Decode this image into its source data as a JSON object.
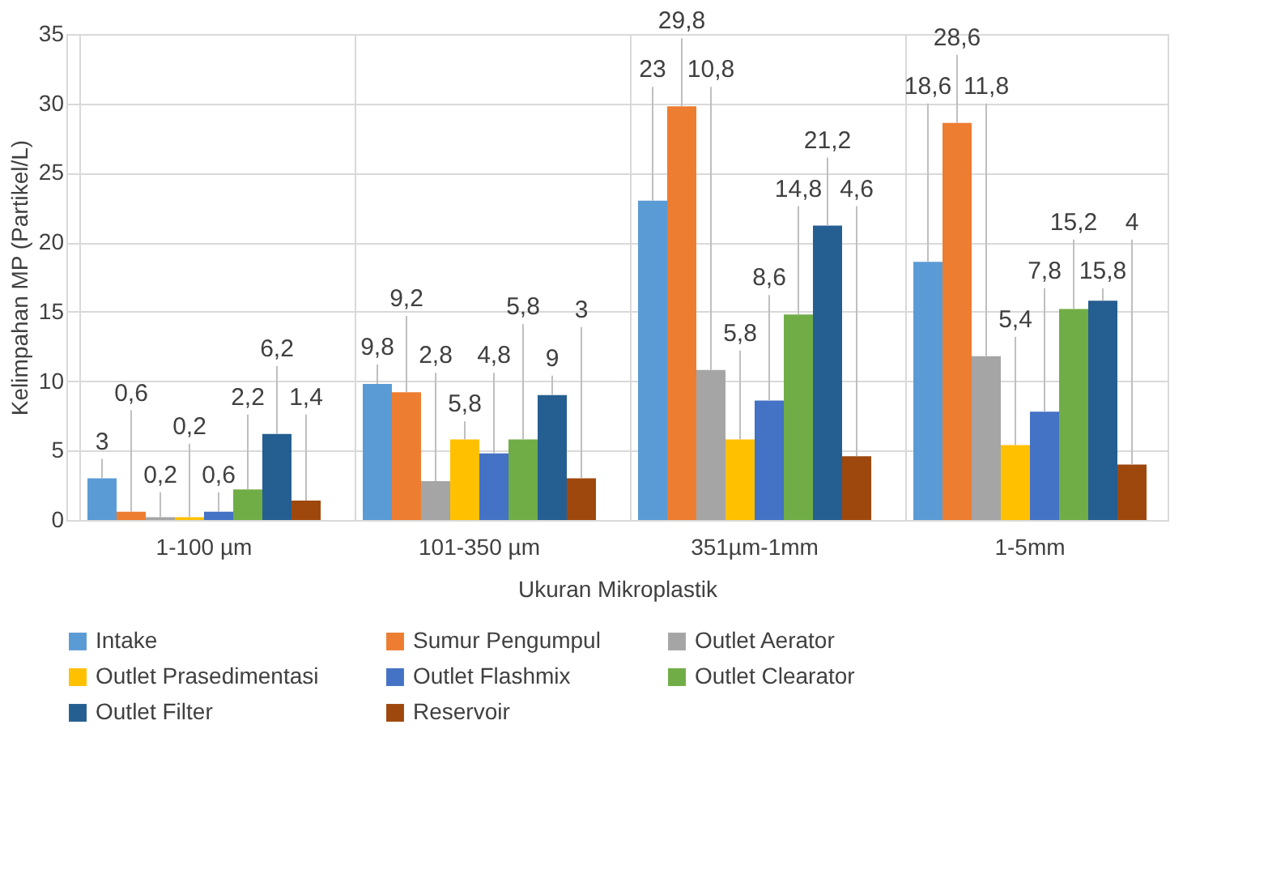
{
  "chart_data": {
    "type": "bar",
    "xlabel": "Ukuran Mikroplastik",
    "ylabel": "Kelimpahan MP (Partikel/L)",
    "categories": [
      "1-100 µm",
      "101-350 µm",
      "351µm-1mm",
      "1-5mm"
    ],
    "ylim": [
      0,
      35
    ],
    "yticks": [
      0,
      5,
      10,
      15,
      20,
      25,
      30,
      35
    ],
    "grid": true,
    "legend": "bottom",
    "series": [
      {
        "name": "Intake",
        "color": "#5b9bd5",
        "values": [
          3,
          9.8,
          23,
          18.6
        ],
        "value_labels": [
          "3",
          "9,8",
          "23",
          "18,6"
        ]
      },
      {
        "name": "Sumur Pengumpul",
        "color": "#ed7d31",
        "values": [
          0.6,
          9.2,
          29.8,
          28.6
        ],
        "value_labels": [
          "0,6",
          "9,2",
          "29,8",
          "28,6"
        ]
      },
      {
        "name": "Outlet Aerator",
        "color": "#a5a5a5",
        "values": [
          0.2,
          2.8,
          10.8,
          11.8
        ],
        "value_labels": [
          "0,2",
          "2,8",
          "10,8",
          "11,8"
        ]
      },
      {
        "name": "Outlet Prasedimentasi",
        "color": "#ffc000",
        "values": [
          0.2,
          5.8,
          5.8,
          5.4
        ],
        "value_labels": [
          "0,2",
          "5,8",
          "5,8",
          "5,4"
        ]
      },
      {
        "name": "Outlet Flashmix",
        "color": "#4472c4",
        "values": [
          0.6,
          4.8,
          8.6,
          7.8
        ],
        "value_labels": [
          "0,6",
          "4,8",
          "8,6",
          "7,8"
        ]
      },
      {
        "name": "Outlet Clearator",
        "color": "#70ad47",
        "values": [
          2.2,
          5.8,
          14.8,
          15.2
        ],
        "value_labels": [
          "2,2",
          "5,8",
          "14,8",
          "15,2"
        ]
      },
      {
        "name": "Outlet Filter",
        "color": "#255e91",
        "values": [
          6.2,
          9,
          21.2,
          15.8
        ],
        "value_labels": [
          "6,2",
          "9",
          "21,2",
          "15,8"
        ]
      },
      {
        "name": "Reservoir",
        "color": "#9e480e",
        "values": [
          1.4,
          3,
          4.6,
          4
        ],
        "value_labels": [
          "1,4",
          "3",
          "4,6",
          "4"
        ]
      }
    ]
  }
}
